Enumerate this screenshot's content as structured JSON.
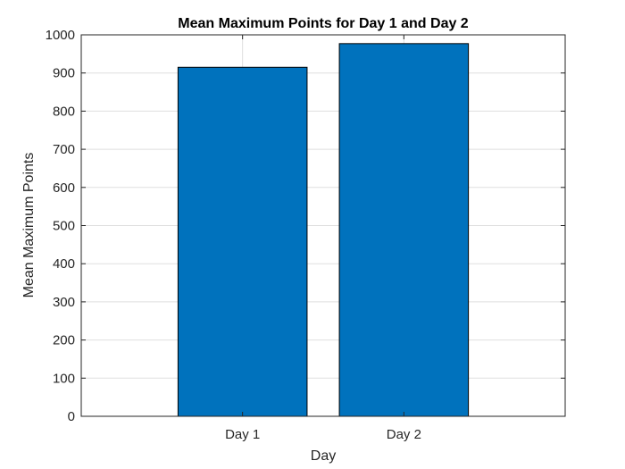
{
  "chart_data": {
    "type": "bar",
    "title": "Mean Maximum Points for Day 1 and Day 2",
    "xlabel": "Day",
    "ylabel": "Mean Maximum Points",
    "categories": [
      "Day 1",
      "Day 2"
    ],
    "values": [
      915,
      977
    ],
    "ylim": [
      0,
      1000
    ],
    "yticks": [
      0,
      100,
      200,
      300,
      400,
      500,
      600,
      700,
      800,
      900,
      1000
    ],
    "grid": true,
    "colors": {
      "bar": "#0072BD",
      "bar_edge": "#000000",
      "grid": "#dfdfdf",
      "axis": "#262626"
    }
  }
}
